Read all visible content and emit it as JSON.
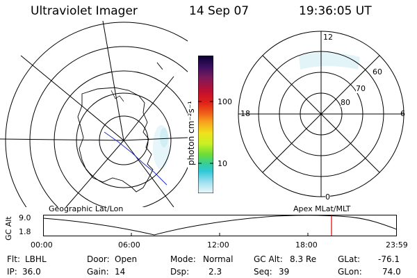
{
  "header": {
    "instrument": "Ultraviolet Imager",
    "date": "14 Sep 07",
    "time": "19:36:05 UT"
  },
  "geo_panel": {
    "label": "Geographic Lat/Lon"
  },
  "apex_panel": {
    "label": "Apex MLat/MLT",
    "mlt_labels": {
      "top": "12",
      "right": "6",
      "bottom": "0",
      "left": "18"
    },
    "lat_labels": [
      "60",
      "70",
      "80"
    ]
  },
  "colorbar": {
    "unit_label": "photon cm⁻²s⁻¹",
    "tick_labels": [
      "100",
      "10"
    ],
    "colors": [
      "#0b0033",
      "#3a1060",
      "#7a1a5a",
      "#b0103a",
      "#e01818",
      "#f0501a",
      "#f7961e",
      "#f0d21c",
      "#dcf01c",
      "#9ee62a",
      "#4ed64e",
      "#2ed0b0",
      "#3fbfe0",
      "#9fe0f0",
      "#e6f6fa"
    ]
  },
  "altitude_plot": {
    "ylabel": "GC Alt",
    "y_ticks": [
      "9.0",
      "1.8"
    ],
    "x_ticks": [
      "00:00",
      "06:00",
      "12:00",
      "18:00",
      "23:59"
    ],
    "marker_color": "#e00000",
    "marker_time": "19:36:05"
  },
  "footer": {
    "col1": [
      {
        "label": "Flt:",
        "value": "LBHL"
      },
      {
        "label": "IP:",
        "value": "36.0"
      }
    ],
    "col2": [
      {
        "label": "Door:",
        "value": "Open"
      },
      {
        "label": "Gain:",
        "value": "14"
      }
    ],
    "col3": [
      {
        "label": "Mode:",
        "value": "Normal"
      },
      {
        "label": "Dsp:",
        "value": "2.3"
      }
    ],
    "col4": [
      {
        "label": "GC Alt:",
        "value": "8.3 Re"
      },
      {
        "label": "Seq:",
        "value": "39"
      }
    ],
    "col5": [
      {
        "label": "GLat:",
        "value": "-76.1"
      },
      {
        "label": "GLon:",
        "value": "74.0"
      }
    ]
  }
}
